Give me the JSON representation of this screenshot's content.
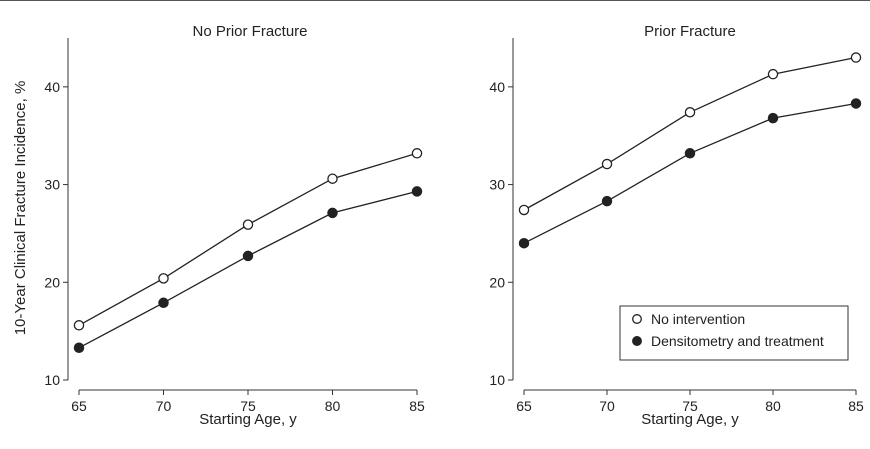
{
  "figure": {
    "ylabel": "10-Year Clinical Fracture Incidence, %",
    "legend": {
      "placement": "bottom-right of right panel",
      "entries": [
        {
          "label": "No intervention",
          "marker": "open-circle"
        },
        {
          "label": "Densitometry and treatment",
          "marker": "filled-circle"
        }
      ]
    }
  },
  "chart_data": [
    {
      "type": "line",
      "title": "No Prior Fracture",
      "xlabel": "Starting Age, y",
      "ylabel": "10-Year Clinical Fracture Incidence, %",
      "x": [
        65,
        70,
        75,
        80,
        85
      ],
      "xticks": [
        "65",
        "70",
        "75",
        "80",
        "85"
      ],
      "yticks": [
        "10",
        "20",
        "30",
        "40"
      ],
      "xlim": [
        65,
        85
      ],
      "ylim": [
        10,
        45
      ],
      "grid": false,
      "series": [
        {
          "name": "No intervention",
          "marker": "open-circle",
          "values": [
            15.6,
            20.4,
            25.9,
            30.6,
            33.2
          ]
        },
        {
          "name": "Densitometry and treatment",
          "marker": "filled-circle",
          "values": [
            13.3,
            17.9,
            22.7,
            27.1,
            29.3
          ]
        }
      ]
    },
    {
      "type": "line",
      "title": "Prior Fracture",
      "xlabel": "Starting Age, y",
      "ylabel": "",
      "x": [
        65,
        70,
        75,
        80,
        85
      ],
      "xticks": [
        "65",
        "70",
        "75",
        "80",
        "85"
      ],
      "yticks": [
        "10",
        "20",
        "30",
        "40"
      ],
      "xlim": [
        65,
        85
      ],
      "ylim": [
        10,
        45
      ],
      "grid": false,
      "series": [
        {
          "name": "No intervention",
          "marker": "open-circle",
          "values": [
            27.4,
            32.1,
            37.4,
            41.3,
            43.0
          ]
        },
        {
          "name": "Densitometry and treatment",
          "marker": "filled-circle",
          "values": [
            24.0,
            28.3,
            33.2,
            36.8,
            38.3
          ]
        }
      ]
    }
  ]
}
